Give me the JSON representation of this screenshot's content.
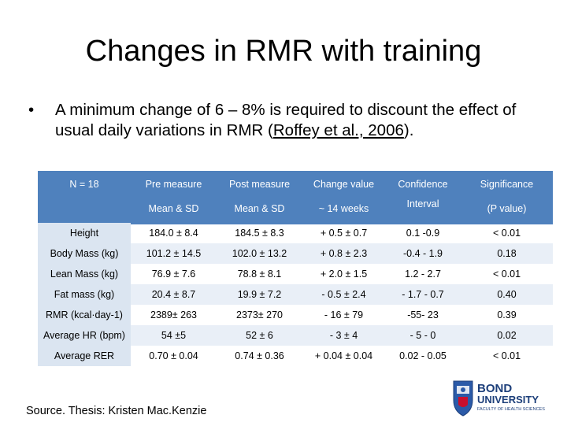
{
  "slide": {
    "title": "Changes in RMR with training",
    "bullet": "A minimum change of 6 – 8% is required to discount the effect of usual daily variations in RMR (",
    "bullet_link": "Roffey et al., 2006",
    "bullet_end": ").",
    "bullet_symbol": "•",
    "source": "Source. Thesis: Kristen Mac.Kenzie",
    "logo": {
      "line1": "BOND",
      "line2": "UNIVERSITY",
      "line3": "FACULTY OF HEALTH SCIENCES"
    }
  },
  "table": {
    "header_row1": [
      "N = 18",
      "Pre measure",
      "Post measure",
      "Change value",
      "Confidence",
      "Significance"
    ],
    "header_row2": [
      "",
      "Mean & SD",
      "Mean & SD",
      "~ 14 weeks",
      "Interval",
      "(P value)"
    ],
    "rows": [
      {
        "label": "Height",
        "cells": [
          "184.0 ± 8.4",
          "184.5 ± 8.3",
          "+ 0.5 ± 0.7",
          "0.1 -0.9",
          "< 0.01"
        ]
      },
      {
        "label": "Body Mass (kg)",
        "cells": [
          "101.2 ± 14.5",
          "102.0 ± 13.2",
          "+ 0.8 ± 2.3",
          "-0.4 - 1.9",
          "0.18"
        ]
      },
      {
        "label": "Lean Mass (kg)",
        "cells": [
          "76.9 ± 7.6",
          "78.8 ± 8.1",
          "+ 2.0 ± 1.5",
          "1.2 - 2.7",
          "< 0.01"
        ]
      },
      {
        "label": "Fat mass (kg)",
        "cells": [
          "20.4 ± 8.7",
          "19.9 ± 7.2",
          "- 0.5 ± 2.4",
          "- 1.7 - 0.7",
          "0.40"
        ]
      },
      {
        "label": "RMR (kcal·day-1)",
        "cells": [
          "2389± 263",
          "2373± 270",
          "- 16 ± 79",
          "-55- 23",
          "0.39"
        ]
      },
      {
        "label": "Average HR (bpm)",
        "cells": [
          "54 ±5",
          "52 ± 6",
          "- 3 ± 4",
          "- 5 - 0",
          "0.02"
        ]
      },
      {
        "label": "Average RER",
        "cells": [
          "0.70 ± 0.04",
          "0.74 ± 0.36",
          "+ 0.04 ± 0.04",
          "0.02 - 0.05",
          "< 0.01"
        ]
      }
    ],
    "colors": {
      "header": "#4f81bd",
      "label_band": "#dbe5f1",
      "row_alt": "#e9eff7"
    }
  }
}
